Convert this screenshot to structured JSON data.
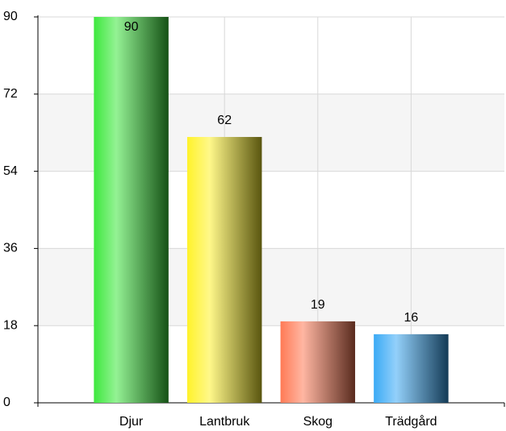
{
  "chart_data": {
    "type": "bar",
    "categories": [
      "Djur",
      "Lantbruk",
      "Skog",
      "Trädgård"
    ],
    "values": [
      90,
      62,
      19,
      16
    ],
    "colors": [
      "#3de83d",
      "#fff22a",
      "#ff7a55",
      "#3aaaf5"
    ],
    "ylim": [
      0,
      90
    ],
    "yticks": [
      0,
      18,
      36,
      54,
      72,
      90
    ],
    "grid": true
  }
}
